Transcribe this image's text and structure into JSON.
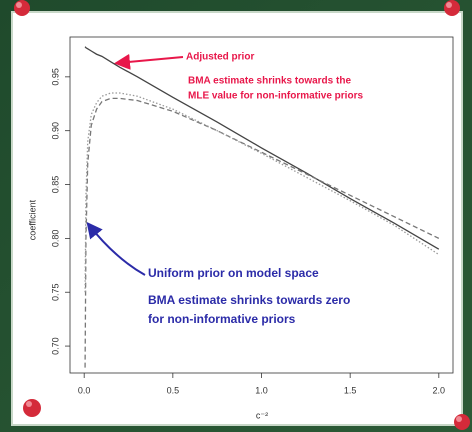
{
  "chart_data": {
    "type": "line",
    "x_label": "c⁻²",
    "y_label": "coefficient",
    "x": [
      0.005,
      0.01,
      0.02,
      0.04,
      0.07,
      0.1,
      0.15,
      0.2,
      0.3,
      0.5,
      0.75,
      1.0,
      1.25,
      1.5,
      1.75,
      2.0
    ],
    "series": [
      {
        "color": "#444444",
        "dash": "solid",
        "values": [
          0.978,
          0.977,
          0.976,
          0.974,
          0.971,
          0.969,
          0.964,
          0.959,
          0.95,
          0.931,
          0.908,
          0.884,
          0.861,
          0.837,
          0.814,
          0.79
        ]
      },
      {
        "color": "#777777",
        "dash": "dashed",
        "values": [
          0.68,
          0.8,
          0.87,
          0.905,
          0.92,
          0.927,
          0.93,
          0.93,
          0.928,
          0.918,
          0.9,
          0.88,
          0.86,
          0.84,
          0.82,
          0.8
        ]
      },
      {
        "color": "#999999",
        "dash": "dotted",
        "values": [
          0.75,
          0.84,
          0.89,
          0.915,
          0.926,
          0.932,
          0.935,
          0.935,
          0.932,
          0.92,
          0.9,
          0.879,
          0.857,
          0.835,
          0.812,
          0.785
        ]
      }
    ],
    "xlim": [
      -0.08,
      2.08
    ],
    "xticks": [
      {
        "value": 0,
        "label": "0.0"
      },
      0.5,
      {
        "value": 1,
        "label": "1.0"
      },
      1.5,
      {
        "value": 2,
        "label": "2.0"
      }
    ],
    "ylim": [
      0.675,
      0.987
    ],
    "yticks": [
      {
        "value": 0.7,
        "label": "0.70"
      },
      0.75,
      {
        "value": 0.8,
        "label": "0.80"
      },
      0.85,
      {
        "value": 0.9,
        "label": "0.90"
      },
      0.95
    ],
    "annotations": [
      {
        "color": "#e8174a",
        "lines": [
          "Adjusted prior"
        ]
      },
      {
        "color": "#e8174a",
        "lines": [
          "BMA estimate shrinks towards the",
          "MLE value for non-informative priors"
        ]
      },
      {
        "color": "#2b2ba8",
        "lines": [
          "Uniform prior on model space"
        ]
      },
      {
        "color": "#2b2ba8",
        "lines": [
          "BMA estimate shrinks towards zero",
          "for non-informative priors"
        ]
      }
    ]
  }
}
